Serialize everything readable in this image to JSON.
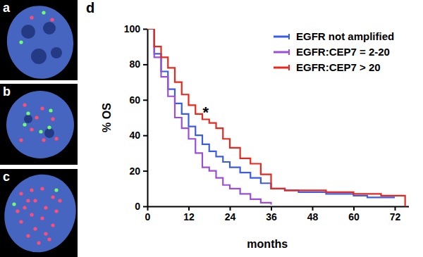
{
  "panel_labels": [
    "a",
    "b",
    "c",
    "d"
  ],
  "chart_data": {
    "type": "line",
    "x_label": "months",
    "y_label": "% OS",
    "x": [
      0,
      2,
      4,
      6,
      8,
      10,
      12,
      14,
      16,
      18,
      20,
      22,
      24,
      27,
      30,
      33,
      36,
      40,
      44,
      48,
      52,
      56,
      60,
      64,
      68,
      72,
      75
    ],
    "series": [
      {
        "name": "EGFR not amplified",
        "color": "#3d5ce6",
        "values": [
          100,
          86,
          76,
          66,
          58,
          52,
          45,
          40,
          35,
          31,
          28,
          25,
          22,
          19,
          16,
          13,
          10,
          9,
          8,
          8,
          7,
          7,
          6,
          5,
          5,
          5,
          null
        ]
      },
      {
        "name": "EGFR:CEP7 = 2-20",
        "color": "#9a4fd6",
        "values": [
          100,
          84,
          73,
          62,
          50,
          44,
          38,
          30,
          22,
          20,
          16,
          12,
          10,
          7,
          4,
          2,
          1,
          null,
          null,
          null,
          null,
          null,
          null,
          null,
          null,
          null,
          null
        ]
      },
      {
        "name": "EGFR:CEP7 > 20",
        "color": "#e8281e",
        "values": [
          100,
          90,
          84,
          78,
          70,
          63,
          57,
          52,
          49,
          47,
          44,
          38,
          33,
          27,
          24,
          18,
          10,
          9,
          9,
          9,
          8,
          8,
          7,
          7,
          6,
          6,
          0
        ]
      }
    ],
    "xlim": [
      0,
      76
    ],
    "ylim": [
      0,
      100
    ],
    "xticks": [
      0,
      12,
      24,
      36,
      48,
      60,
      72
    ],
    "yticks": [
      0,
      20,
      40,
      60,
      80,
      100
    ],
    "legend": "upper right",
    "line_style": "step",
    "annotations": [
      {
        "text": "*",
        "x": 17,
        "y": 50
      }
    ]
  }
}
